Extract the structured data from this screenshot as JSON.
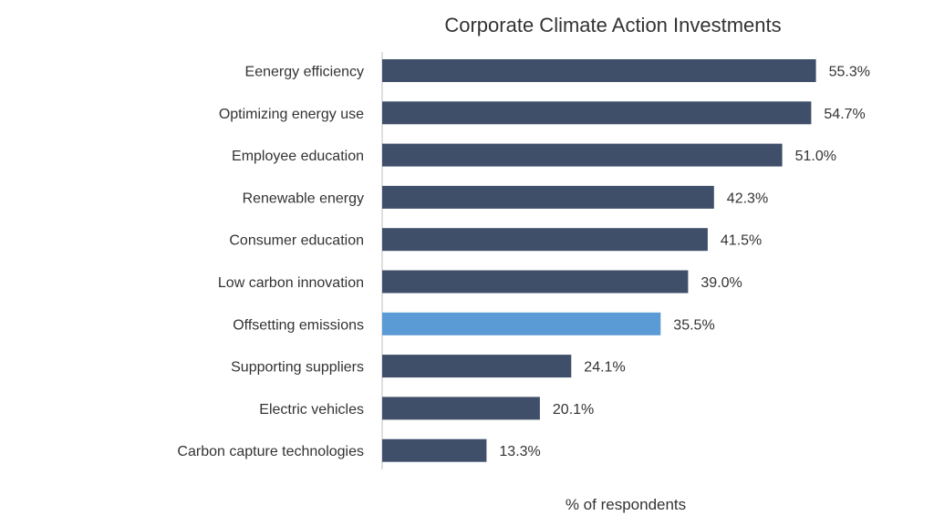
{
  "chart_data": {
    "type": "bar",
    "orientation": "horizontal",
    "title": "Corporate Climate Action Investments",
    "xlabel": "% of respondents",
    "ylabel": "",
    "categories": [
      "Eenergy efficiency",
      "Optimizing energy use",
      "Employee education",
      "Renewable energy",
      "Consumer education",
      "Low carbon innovation",
      "Offsetting emissions",
      "Supporting suppliers",
      "Electric vehicles",
      "Carbon capture technologies"
    ],
    "values": [
      55.3,
      54.7,
      51.0,
      42.3,
      41.5,
      39.0,
      35.5,
      24.1,
      20.1,
      13.3
    ],
    "value_labels": [
      "55.3%",
      "54.7%",
      "51.0%",
      "42.3%",
      "41.5%",
      "39.0%",
      "35.5%",
      "24.1%",
      "20.1%",
      "13.3%"
    ],
    "highlight_index": 6,
    "xlim": [
      0,
      60
    ],
    "grid": false,
    "legend": "none",
    "colors": {
      "bar": "#3F4F69",
      "highlight": "#5B9BD5",
      "axis": "#BFBFBF",
      "text": "#333333"
    }
  }
}
